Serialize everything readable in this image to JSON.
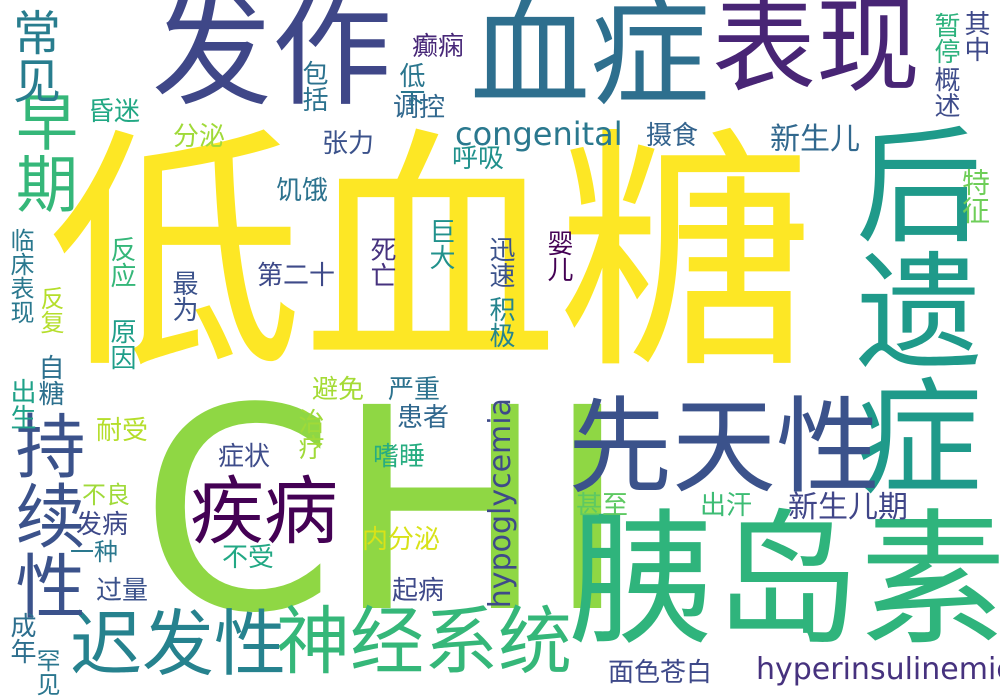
{
  "words": [
    {
      "text": "低血糖",
      "color": "#fde725"
    },
    {
      "text": "CHI",
      "color": "#8fd744"
    },
    {
      "text": "发作",
      "color": "#3f4788"
    },
    {
      "text": "血症",
      "color": "#2e6f8e"
    },
    {
      "text": "表现",
      "color": "#482575"
    },
    {
      "text": "后遗症",
      "color": "#1f9a8a"
    },
    {
      "text": "胰岛素",
      "color": "#2fb47c"
    },
    {
      "text": "先天性",
      "color": "#3b528b"
    },
    {
      "text": "神经系统",
      "color": "#35b779"
    },
    {
      "text": "迟发性",
      "color": "#26828e"
    },
    {
      "text": "持续性",
      "color": "#3b528b"
    },
    {
      "text": "疾病",
      "color": "#440154"
    },
    {
      "text": "早期",
      "color": "#35b779"
    },
    {
      "text": "常见",
      "color": "#287d8e"
    },
    {
      "text": "congenital",
      "color": "#2a788e"
    },
    {
      "text": "hypoglycemia",
      "color": "#3e4a89"
    },
    {
      "text": "hyperinsulinemic",
      "color": "#46327e"
    },
    {
      "text": "新生儿期",
      "color": "#404688"
    },
    {
      "text": "新生儿",
      "color": "#31688e"
    },
    {
      "text": "特征",
      "color": "#6ece58"
    },
    {
      "text": "暂停",
      "color": "#2db27d"
    },
    {
      "text": "其中",
      "color": "#3e4989"
    },
    {
      "text": "概述",
      "color": "#3e4c8a"
    },
    {
      "text": "癫痫",
      "color": "#482878"
    },
    {
      "text": "包括",
      "color": "#2c728e"
    },
    {
      "text": "低下",
      "color": "#2a768e"
    },
    {
      "text": "调控",
      "color": "#31688e"
    },
    {
      "text": "呼吸",
      "color": "#21918c"
    },
    {
      "text": "摄食",
      "color": "#33638d"
    },
    {
      "text": "张力",
      "color": "#3b528b"
    },
    {
      "text": "分泌",
      "color": "#a0da39"
    },
    {
      "text": "昏迷",
      "color": "#22a884"
    },
    {
      "text": "饥饿",
      "color": "#2c728e"
    },
    {
      "text": "第二十",
      "color": "#3e4a89"
    },
    {
      "text": "死亡",
      "color": "#46327e"
    },
    {
      "text": "巨大",
      "color": "#21918c"
    },
    {
      "text": "迅速",
      "color": "#3b528b"
    },
    {
      "text": "积极",
      "color": "#25848e"
    },
    {
      "text": "婴儿",
      "color": "#440154"
    },
    {
      "text": "临床表现",
      "color": "#2a788e"
    },
    {
      "text": "反应",
      "color": "#35b779"
    },
    {
      "text": "反复",
      "color": "#b5de2b"
    },
    {
      "text": "最为",
      "color": "#3b528b"
    },
    {
      "text": "原因",
      "color": "#1f9e89"
    },
    {
      "text": "出生",
      "color": "#1fa188"
    },
    {
      "text": "自糖",
      "color": "#2d708e"
    },
    {
      "text": "避免",
      "color": "#a5db36"
    },
    {
      "text": "严重",
      "color": "#2c728e"
    },
    {
      "text": "治疗",
      "color": "#a0da39"
    },
    {
      "text": "患者",
      "color": "#31688e"
    },
    {
      "text": "嗜睡",
      "color": "#27ad81"
    },
    {
      "text": "耐受",
      "color": "#b5de2b"
    },
    {
      "text": "症状",
      "color": "#3e4c8a"
    },
    {
      "text": "不良",
      "color": "#a0da39"
    },
    {
      "text": "发病",
      "color": "#3e4989"
    },
    {
      "text": "一种",
      "color": "#2a788e"
    },
    {
      "text": "不受",
      "color": "#22a884"
    },
    {
      "text": "内分泌",
      "color": "#d8e219"
    },
    {
      "text": "甚至",
      "color": "#5ec962"
    },
    {
      "text": "出汗",
      "color": "#3dbc74"
    },
    {
      "text": "起病",
      "color": "#3e4989"
    },
    {
      "text": "过量",
      "color": "#3b528b"
    },
    {
      "text": "成年",
      "color": "#2e6f8e"
    },
    {
      "text": "罕见",
      "color": "#2a768e"
    },
    {
      "text": "面色苍白",
      "color": "#3e4989"
    }
  ]
}
